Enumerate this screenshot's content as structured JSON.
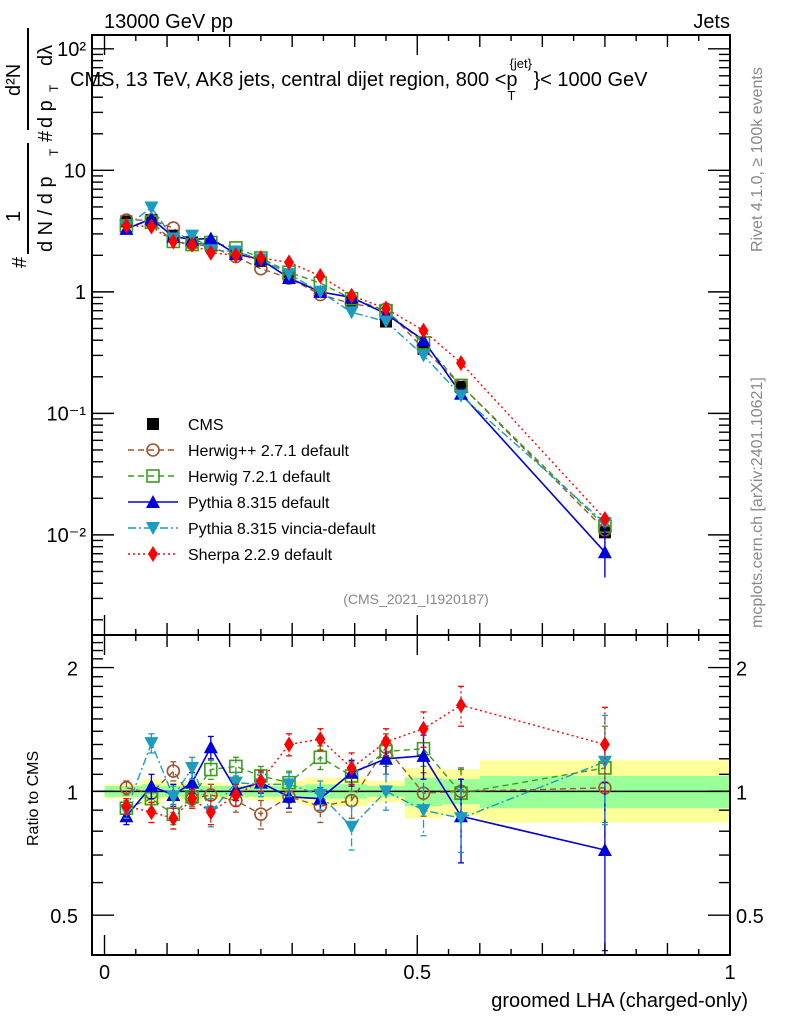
{
  "header": {
    "left": "13000 GeV pp",
    "right": "Jets"
  },
  "side_labels": {
    "rivet": "Rivet 4.1.0, ≥ 100k events",
    "mcplots": "mcplots.cern.ch [arXiv:2401.10621]"
  },
  "chart_data": [
    {
      "type": "line",
      "panel": "main",
      "title": "CMS, 13 TeV, AK8 jets, central dijet region, 800 <p_T^{jet}< 1000 GeV",
      "title_parts": {
        "main": "CMS, 13 TeV, AK8 jets, central dijet region, 800 <p",
        "sup": "{jet}",
        "sub": "T",
        "tail": "}< 1000 GeV"
      },
      "ylabel": "1/(dN/dp_T) d²N/(dp_T dλ)",
      "ylabel_parts": {
        "hash1": "#",
        "one": "1",
        "den": "d N / d p",
        "T": "T",
        "hash2": "#",
        "num": "d²N",
        "den2": "d p",
        "T2": "T",
        "dl": "dλ"
      },
      "yscale": "log",
      "ylim": [
        0.0015,
        130
      ],
      "xlim": [
        -0.02,
        1.0
      ],
      "ytick_labels": [
        "10⁻²",
        "10⁻¹",
        "1",
        "10",
        "10²"
      ],
      "yticks": [
        0.01,
        0.1,
        1,
        10,
        100
      ],
      "watermark": "(CMS_2021_I1920187)",
      "legend_position": "center-left",
      "x": [
        0.035,
        0.075,
        0.11,
        0.14,
        0.17,
        0.21,
        0.25,
        0.295,
        0.345,
        0.395,
        0.45,
        0.51,
        0.57,
        0.8
      ],
      "series": [
        {
          "name": "CMS",
          "color": "#000000",
          "marker": "square-filled",
          "line": "none",
          "values": [
            3.8,
            3.9,
            2.9,
            2.55,
            2.4,
            2.05,
            1.8,
            1.35,
            1.0,
            0.82,
            0.57,
            0.34,
            0.165,
            0.0105
          ]
        },
        {
          "name": "Herwig++ 2.7.1 default",
          "color": "#a0522d",
          "marker": "circle-open",
          "line": "dashed",
          "values": [
            3.9,
            3.9,
            3.35,
            2.5,
            2.35,
            1.95,
            1.55,
            1.3,
            0.95,
            0.8,
            0.72,
            0.34,
            0.17,
            0.011
          ]
        },
        {
          "name": "Herwig 7.2.1 default",
          "color": "#3c9b1e",
          "marker": "square-open",
          "line": "dashed",
          "values": [
            3.5,
            3.75,
            2.6,
            2.45,
            2.55,
            2.3,
            1.9,
            1.45,
            1.18,
            0.88,
            0.7,
            0.38,
            0.17,
            0.0118
          ]
        },
        {
          "name": "Pythia 8.315 default",
          "color": "#0000dd",
          "marker": "triangle-up-filled",
          "line": "solid",
          "values": [
            3.3,
            4.0,
            2.85,
            2.7,
            2.75,
            2.05,
            1.85,
            1.3,
            1.0,
            0.9,
            0.66,
            0.4,
            0.145,
            0.0072
          ]
        },
        {
          "name": "Pythia 8.315 vincia-default",
          "color": "#1a9bbf",
          "marker": "triangle-down-filled",
          "line": "dashdot",
          "values": [
            3.45,
            4.95,
            2.75,
            2.9,
            2.2,
            2.15,
            1.85,
            1.4,
            1.0,
            0.68,
            0.57,
            0.3,
            0.14,
            0.0125
          ]
        },
        {
          "name": "Sherpa 2.2.9 default",
          "color": "#ff0000",
          "marker": "diamond-filled",
          "line": "dotted",
          "values": [
            3.5,
            3.45,
            2.6,
            2.45,
            2.1,
            2.0,
            1.9,
            1.75,
            1.35,
            0.93,
            0.73,
            0.48,
            0.26,
            0.0135
          ]
        }
      ]
    },
    {
      "type": "line",
      "panel": "ratio",
      "ylabel": "Ratio to CMS",
      "xlabel": "groomed LHA (charged-only)",
      "yscale": "log",
      "ylim": [
        0.4,
        2.4
      ],
      "xlim": [
        -0.02,
        1.0
      ],
      "ytick_labels": [
        "0.5",
        "1",
        "2"
      ],
      "yticks": [
        0.5,
        1,
        2
      ],
      "xtick_labels": [
        "0",
        "0.5",
        "1"
      ],
      "xticks": [
        0,
        0.5,
        1
      ],
      "x": [
        0.035,
        0.075,
        0.11,
        0.14,
        0.17,
        0.21,
        0.25,
        0.295,
        0.345,
        0.395,
        0.45,
        0.51,
        0.57,
        0.8
      ],
      "bands": {
        "edges": [
          0.0,
          0.06,
          0.09,
          0.125,
          0.155,
          0.19,
          0.23,
          0.27,
          0.32,
          0.37,
          0.42,
          0.48,
          0.54,
          0.6,
          1.0
        ],
        "stat_lo": [
          0.97,
          0.96,
          0.97,
          0.96,
          0.97,
          0.97,
          0.97,
          0.97,
          0.96,
          0.96,
          0.97,
          0.92,
          0.93,
          0.91
        ],
        "stat_hi": [
          1.03,
          1.04,
          1.03,
          1.04,
          1.03,
          1.03,
          1.03,
          1.03,
          1.04,
          1.04,
          1.03,
          1.08,
          1.07,
          1.09
        ],
        "syst_lo": [
          0.96,
          0.93,
          0.95,
          0.94,
          0.95,
          0.96,
          0.95,
          0.94,
          0.92,
          0.92,
          0.94,
          0.86,
          0.87,
          0.84
        ],
        "syst_hi": [
          1.04,
          1.07,
          1.05,
          1.06,
          1.05,
          1.04,
          1.05,
          1.06,
          1.08,
          1.08,
          1.06,
          1.14,
          1.13,
          1.19
        ],
        "stat_color": "#99ff99",
        "syst_color": "#ffff99"
      },
      "series": [
        {
          "name": "Herwig++ 2.7.1 default",
          "color": "#a0522d",
          "marker": "circle-open",
          "line": "dashed",
          "values": [
            1.02,
            0.99,
            1.12,
            0.96,
            0.98,
            0.95,
            0.88,
            0.97,
            0.92,
            0.95,
            1.28,
            0.99,
            1.0,
            1.02
          ],
          "err": [
            0.04,
            0.05,
            0.06,
            0.05,
            0.06,
            0.06,
            0.07,
            0.08,
            0.08,
            0.09,
            0.1,
            0.12,
            0.14,
            0.3
          ]
        },
        {
          "name": "Herwig 7.2.1 default",
          "color": "#3c9b1e",
          "marker": "square-open",
          "line": "dashed",
          "values": [
            0.91,
            0.96,
            0.88,
            0.97,
            1.13,
            1.15,
            1.09,
            1.05,
            1.21,
            1.09,
            1.25,
            1.27,
            0.99,
            1.14
          ],
          "err": [
            0.04,
            0.05,
            0.05,
            0.05,
            0.06,
            0.06,
            0.06,
            0.07,
            0.08,
            0.09,
            0.1,
            0.12,
            0.14,
            0.3
          ]
        },
        {
          "name": "Pythia 8.315 default",
          "color": "#0000dd",
          "marker": "triangle-up-filled",
          "line": "solid",
          "values": [
            0.87,
            1.03,
            0.98,
            1.05,
            1.28,
            1.01,
            1.05,
            0.97,
            0.96,
            1.11,
            1.2,
            1.22,
            0.87,
            0.72
          ],
          "err": [
            0.04,
            0.07,
            0.06,
            0.06,
            0.08,
            0.06,
            0.06,
            0.06,
            0.06,
            0.08,
            0.1,
            0.15,
            0.2,
            0.33
          ]
        },
        {
          "name": "Pythia 8.315 vincia-default",
          "color": "#1a9bbf",
          "marker": "triangle-down-filled",
          "line": "dashdot",
          "values": [
            0.9,
            1.31,
            0.97,
            1.14,
            0.89,
            1.05,
            1.04,
            1.04,
            0.98,
            0.82,
            1.0,
            0.9,
            0.86,
            1.18
          ],
          "err": [
            0.04,
            0.07,
            0.06,
            0.07,
            0.07,
            0.06,
            0.07,
            0.07,
            0.08,
            0.1,
            0.1,
            0.12,
            0.15,
            0.35
          ]
        },
        {
          "name": "Sherpa 2.2.9 default",
          "color": "#ff0000",
          "marker": "diamond-filled",
          "line": "dotted",
          "values": [
            0.92,
            0.89,
            0.86,
            0.96,
            0.89,
            0.98,
            1.06,
            1.3,
            1.34,
            1.14,
            1.32,
            1.42,
            1.62,
            1.3
          ],
          "err": [
            0.04,
            0.05,
            0.05,
            0.05,
            0.06,
            0.06,
            0.06,
            0.08,
            0.08,
            0.1,
            0.1,
            0.14,
            0.18,
            0.3
          ]
        }
      ]
    }
  ]
}
